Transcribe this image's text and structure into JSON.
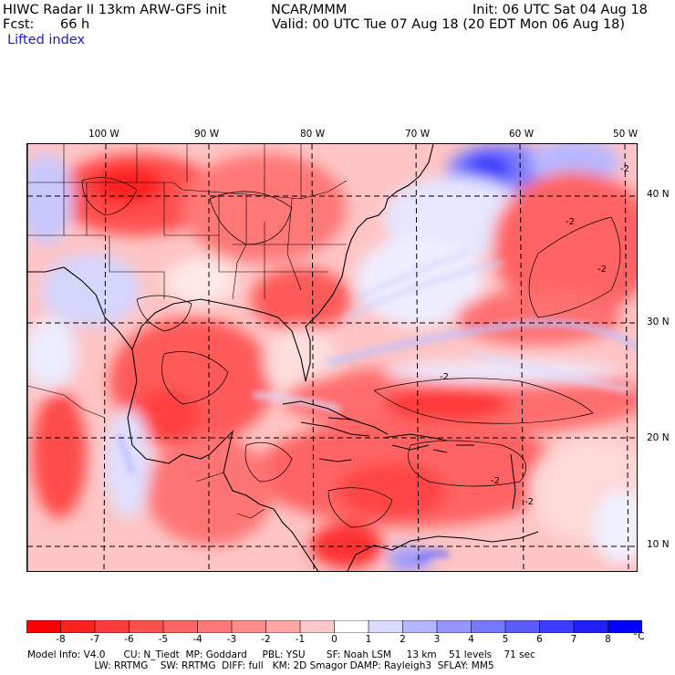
{
  "header": {
    "title": "HIWC Radar II 13km ARW-GFS init",
    "org": "NCAR/MMM",
    "init": "Init: 06 UTC Sat 04 Aug 18",
    "fcst_label": "Fcst:",
    "fcst_value": "66 h",
    "valid": "Valid: 00 UTC Tue 07 Aug 18 (20 EDT Mon 06 Aug 18)",
    "field": "Lifted index"
  },
  "map": {
    "lon_labels": [
      "100 W",
      "90 W",
      "80 W",
      "70 W",
      "60 W",
      "50 W"
    ],
    "lat_labels": [
      "40 N",
      "30 N",
      "20 N",
      "10 N"
    ],
    "contour_label": "-2"
  },
  "colorbar": {
    "ticks": [
      "-8",
      "-7",
      "-6",
      "-5",
      "-4",
      "-3",
      "-2",
      "-1",
      "0",
      "1",
      "2",
      "3",
      "4",
      "5",
      "6",
      "7",
      "8"
    ],
    "unit": "°C",
    "colors": [
      "#ff0000",
      "#ff2020",
      "#ff3c3c",
      "#ff5050",
      "#ff6464",
      "#ff7878",
      "#ff8c8c",
      "#ffa6a6",
      "#ffc8c8",
      "#ffffff",
      "#dadaff",
      "#b4b4ff",
      "#9696ff",
      "#7878ff",
      "#5a5aff",
      "#3c3cff",
      "#2020ff",
      "#0000ff"
    ]
  },
  "footer": {
    "line1": "Model Info: V4.0      CU: N_Tiedt  MP: Goddard     PBL: YSU       SF: Noah LSM     13 km    51 levels    71 sec",
    "line2": "                      LW: RRTMG    SW: RRTMG  DIFF: full   KM: 2D Smagor DAMP: Rayleigh3  SFLAY: MM5"
  }
}
